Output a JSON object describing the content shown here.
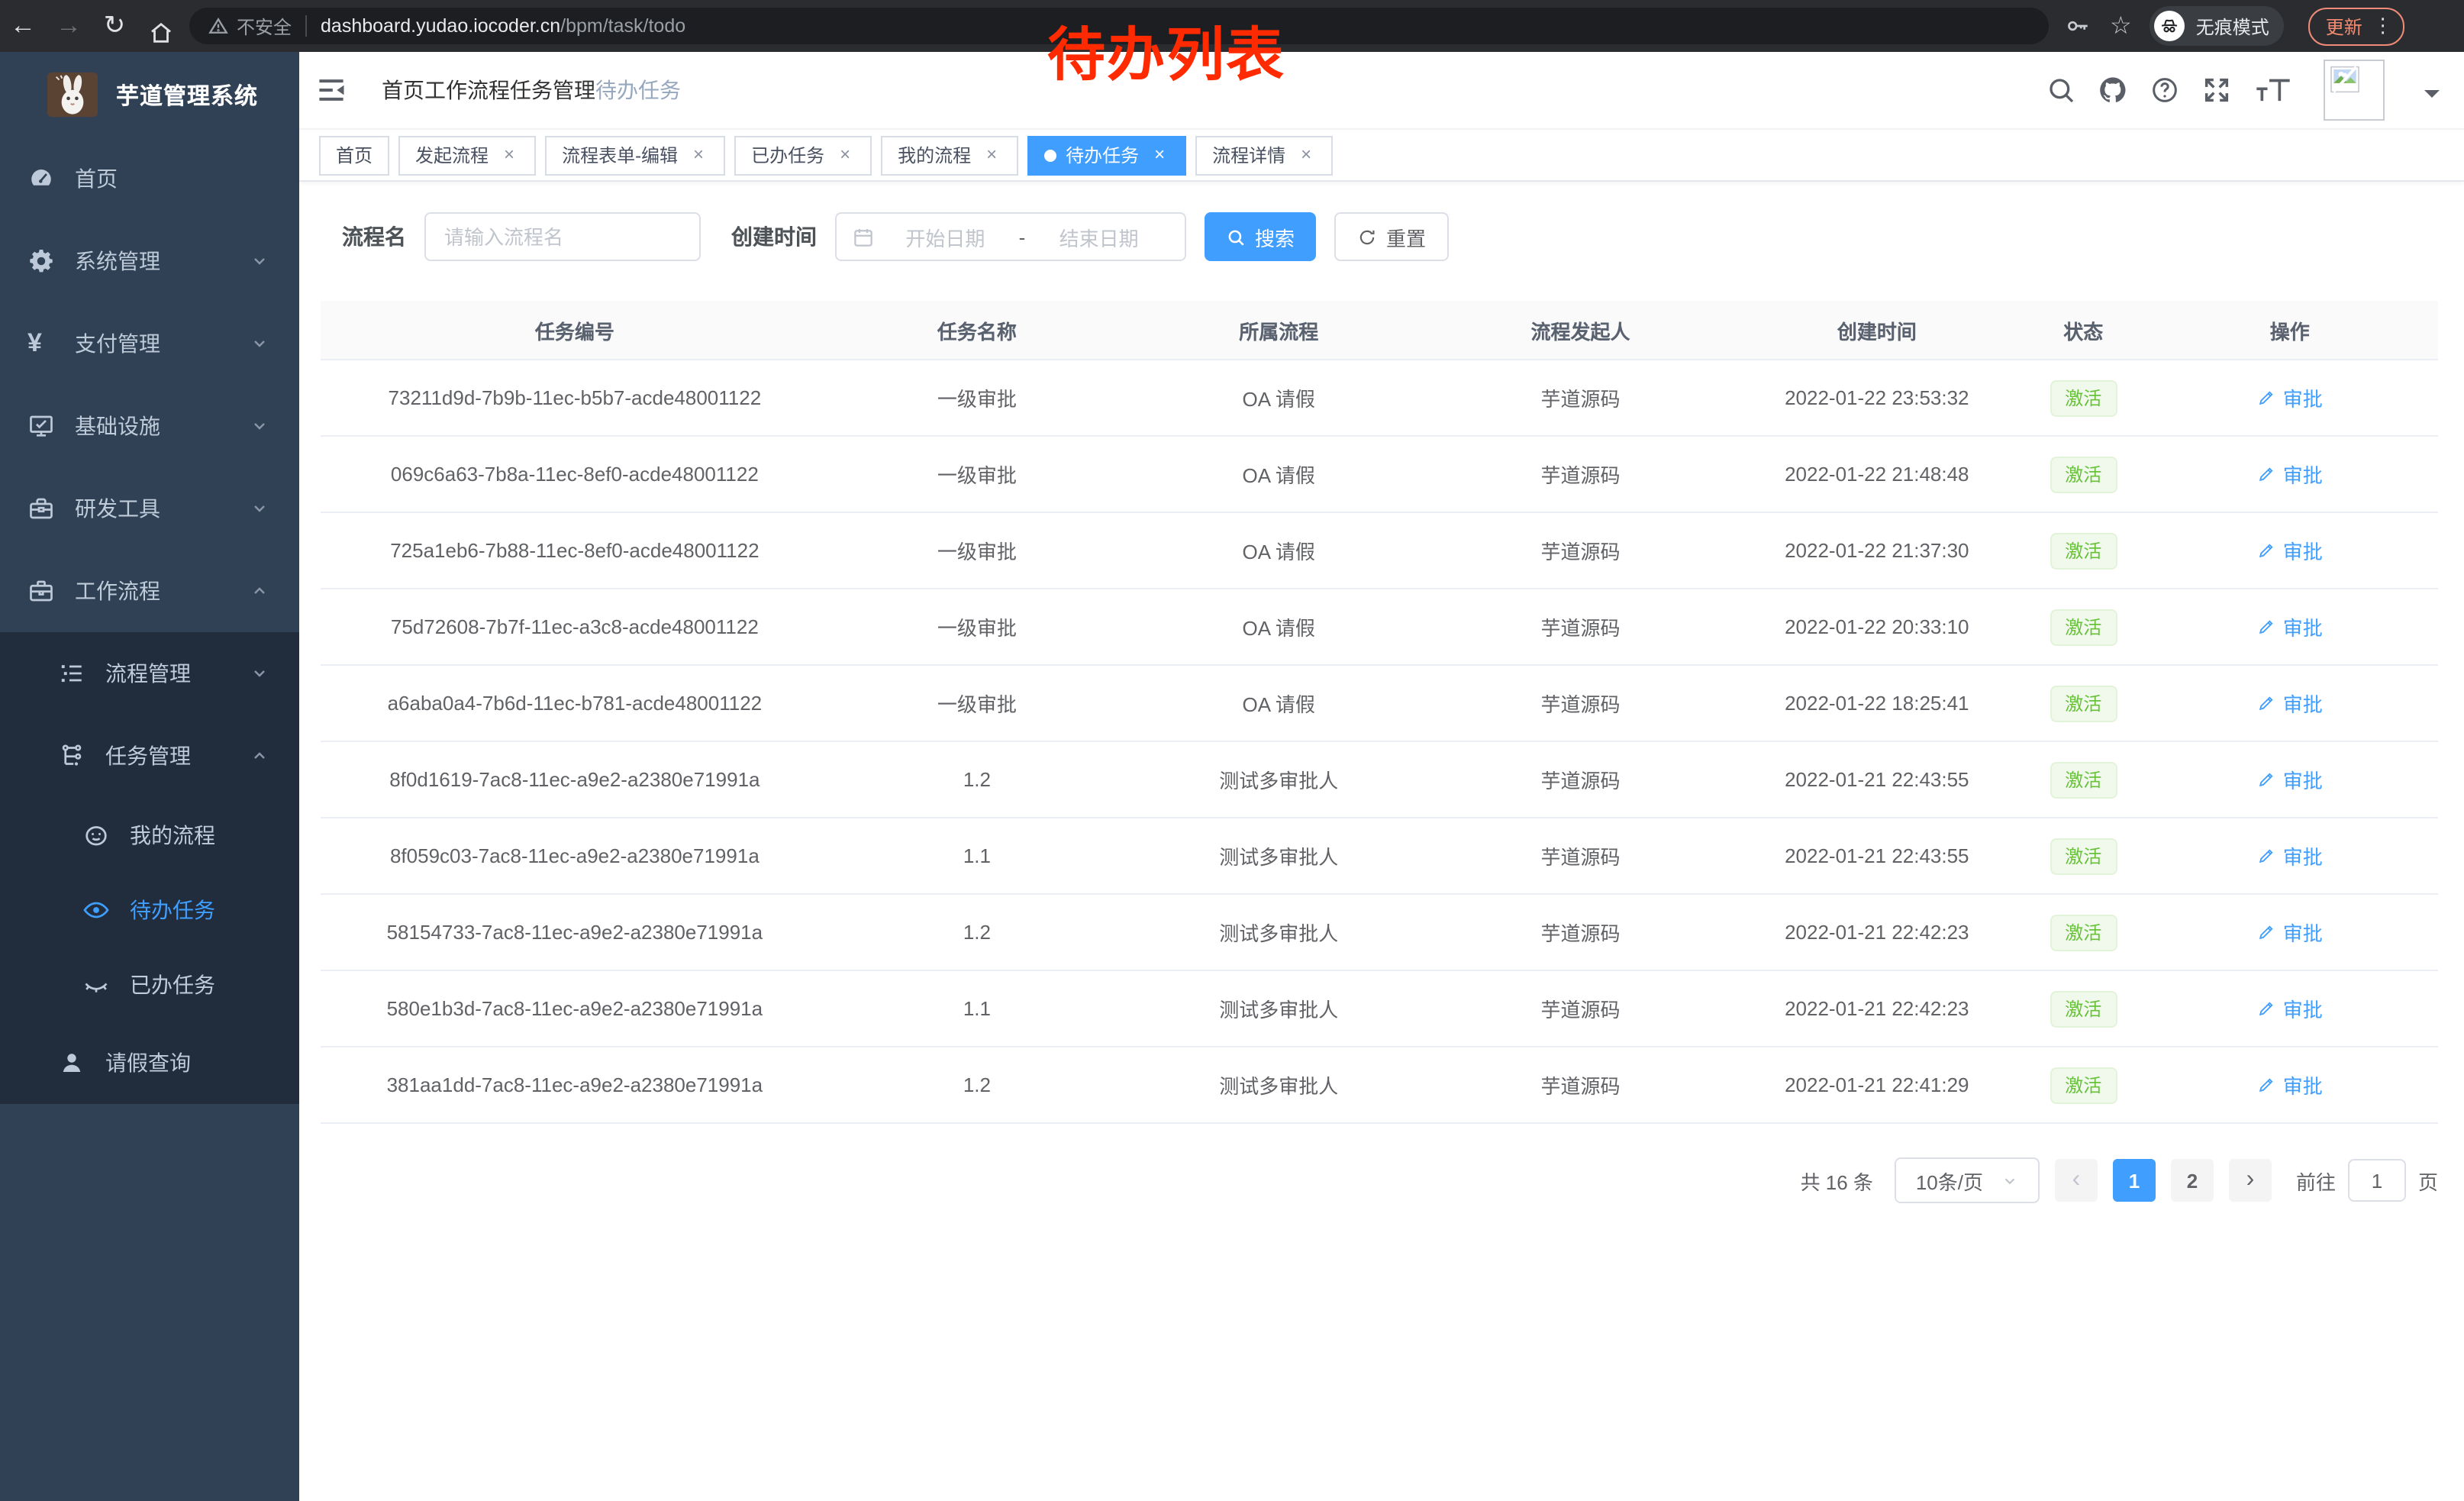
{
  "browser": {
    "security_label": "不安全",
    "url_host": "dashboard.yudao.iocoder.cn",
    "url_path": "/bpm/task/todo",
    "incognito_label": "无痕模式",
    "update_label": "更新"
  },
  "glyphs": {
    "back": "←",
    "forward": "→",
    "reload": "↻",
    "star": "☆",
    "more": "⋮",
    "close": "×",
    "prev": "‹",
    "next": "›"
  },
  "annotation": {
    "text": "待办列表"
  },
  "sidebar": {
    "app_title": "芋道管理系统",
    "top_items": [
      {
        "label": "首页",
        "icon": "dashboard-icon",
        "chevron": "",
        "active": false,
        "cls": "lv1"
      },
      {
        "label": "系统管理",
        "icon": "gear-icon",
        "chevron": "down",
        "active": false,
        "cls": "lv1"
      },
      {
        "label": "支付管理",
        "icon": "yen-icon",
        "chevron": "down",
        "active": false,
        "cls": "lv1"
      },
      {
        "label": "基础设施",
        "icon": "monitor-icon",
        "chevron": "down",
        "active": false,
        "cls": "lv1"
      },
      {
        "label": "研发工具",
        "icon": "toolbox-icon",
        "chevron": "down",
        "active": false,
        "cls": "lv1"
      },
      {
        "label": "工作流程",
        "icon": "briefcase-icon",
        "chevron": "up",
        "active": false,
        "cls": "lv1"
      }
    ],
    "sub_items": [
      {
        "label": "流程管理",
        "icon": "list-tree-icon",
        "chevron": "down",
        "active": false,
        "cls": "lv2"
      },
      {
        "label": "任务管理",
        "icon": "flow-icon",
        "chevron": "up",
        "active": false,
        "cls": "lv2"
      },
      {
        "label": "我的流程",
        "icon": "face-icon",
        "chevron": "",
        "active": false,
        "cls": "lv3"
      },
      {
        "label": "待办任务",
        "icon": "eye-open-icon",
        "chevron": "",
        "active": true,
        "cls": "lv3"
      },
      {
        "label": "已办任务",
        "icon": "eye-closed-icon",
        "chevron": "",
        "active": false,
        "cls": "lv3"
      },
      {
        "label": "请假查询",
        "icon": "user-icon",
        "chevron": "",
        "active": false,
        "cls": "lv2"
      }
    ]
  },
  "navbar": {
    "breadcrumb": [
      {
        "label": "首页",
        "current": false
      },
      {
        "label": "工作流程",
        "current": false
      },
      {
        "label": "任务管理",
        "current": false
      },
      {
        "label": "待办任务",
        "current": true
      }
    ],
    "icons": [
      "search-icon",
      "github-icon",
      "question-icon",
      "fullscreen-icon",
      "font-size-icon"
    ]
  },
  "tabs": [
    {
      "label": "首页",
      "closable": false,
      "active": false
    },
    {
      "label": "发起流程",
      "closable": true,
      "active": false
    },
    {
      "label": "流程表单-编辑",
      "closable": true,
      "active": false
    },
    {
      "label": "已办任务",
      "closable": true,
      "active": false
    },
    {
      "label": "我的流程",
      "closable": true,
      "active": false
    },
    {
      "label": "待办任务",
      "closable": true,
      "active": true
    },
    {
      "label": "流程详情",
      "closable": true,
      "active": false
    }
  ],
  "filters": {
    "name_label": "流程名",
    "name_placeholder": "请输入流程名",
    "time_label": "创建时间",
    "start_placeholder": "开始日期",
    "range_separator": "-",
    "end_placeholder": "结束日期",
    "search_label": "搜索",
    "reset_label": "重置"
  },
  "table": {
    "columns": [
      "任务编号",
      "任务名称",
      "所属流程",
      "流程发起人",
      "创建时间",
      "状态",
      "操作"
    ],
    "rows": [
      {
        "id": "73211d9d-7b9b-11ec-b5b7-acde48001122",
        "name": "一级审批",
        "process": "OA 请假",
        "starter": "芋道源码",
        "time": "2022-01-22 23:53:32",
        "status": "激活",
        "action": "审批"
      },
      {
        "id": "069c6a63-7b8a-11ec-8ef0-acde48001122",
        "name": "一级审批",
        "process": "OA 请假",
        "starter": "芋道源码",
        "time": "2022-01-22 21:48:48",
        "status": "激活",
        "action": "审批"
      },
      {
        "id": "725a1eb6-7b88-11ec-8ef0-acde48001122",
        "name": "一级审批",
        "process": "OA 请假",
        "starter": "芋道源码",
        "time": "2022-01-22 21:37:30",
        "status": "激活",
        "action": "审批"
      },
      {
        "id": "75d72608-7b7f-11ec-a3c8-acde48001122",
        "name": "一级审批",
        "process": "OA 请假",
        "starter": "芋道源码",
        "time": "2022-01-22 20:33:10",
        "status": "激活",
        "action": "审批"
      },
      {
        "id": "a6aba0a4-7b6d-11ec-b781-acde48001122",
        "name": "一级审批",
        "process": "OA 请假",
        "starter": "芋道源码",
        "time": "2022-01-22 18:25:41",
        "status": "激活",
        "action": "审批"
      },
      {
        "id": "8f0d1619-7ac8-11ec-a9e2-a2380e71991a",
        "name": "1.2",
        "process": "测试多审批人",
        "starter": "芋道源码",
        "time": "2022-01-21 22:43:55",
        "status": "激活",
        "action": "审批"
      },
      {
        "id": "8f059c03-7ac8-11ec-a9e2-a2380e71991a",
        "name": "1.1",
        "process": "测试多审批人",
        "starter": "芋道源码",
        "time": "2022-01-21 22:43:55",
        "status": "激活",
        "action": "审批"
      },
      {
        "id": "58154733-7ac8-11ec-a9e2-a2380e71991a",
        "name": "1.2",
        "process": "测试多审批人",
        "starter": "芋道源码",
        "time": "2022-01-21 22:42:23",
        "status": "激活",
        "action": "审批"
      },
      {
        "id": "580e1b3d-7ac8-11ec-a9e2-a2380e71991a",
        "name": "1.1",
        "process": "测试多审批人",
        "starter": "芋道源码",
        "time": "2022-01-21 22:42:23",
        "status": "激活",
        "action": "审批"
      },
      {
        "id": "381aa1dd-7ac8-11ec-a9e2-a2380e71991a",
        "name": "1.2",
        "process": "测试多审批人",
        "starter": "芋道源码",
        "time": "2022-01-21 22:41:29",
        "status": "激活",
        "action": "审批"
      }
    ]
  },
  "pagination": {
    "total": "共 16 条",
    "page_size": "10条/页",
    "pages": [
      {
        "label": "1",
        "active": true
      },
      {
        "label": "2",
        "active": false
      }
    ],
    "goto_label": "前往",
    "goto_value": "1",
    "goto_suffix": "页"
  },
  "colors": {
    "primary": "#409eff",
    "success": "#67c23a",
    "sidebar_bg": "#304156",
    "submenu_bg": "#212d3d",
    "annotation_red": "#ff2a00"
  }
}
